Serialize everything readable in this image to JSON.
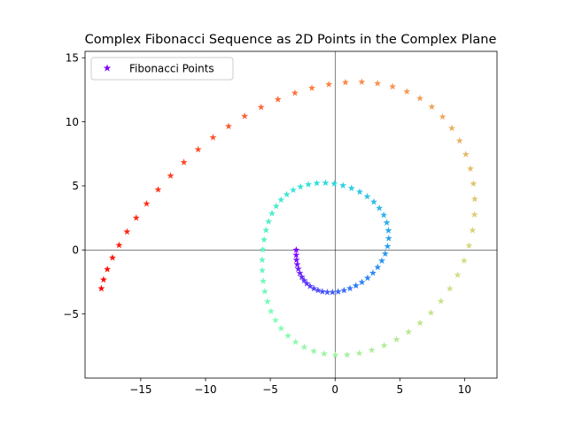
{
  "chart_data": {
    "type": "scatter",
    "title": "Complex Fibonacci Sequence as 2D Points in the Complex Plane",
    "xlabel": "",
    "ylabel": "",
    "xlim": [
      -19.3,
      12.5
    ],
    "ylim": [
      -10.0,
      15.5
    ],
    "x_ticks": [
      -15,
      -10,
      -5,
      0,
      5,
      10
    ],
    "y_ticks": [
      -5,
      0,
      5,
      10,
      15
    ],
    "x_tick_labels": [
      "−15",
      "−10",
      "−5",
      "0",
      "5",
      "10"
    ],
    "y_tick_labels": [
      "−5",
      "0",
      "5",
      "10",
      "15"
    ],
    "grid": false,
    "legend": {
      "position": "top-left",
      "entries": [
        "Fibonacci Points"
      ]
    },
    "marker": "star",
    "colormap": "rainbow",
    "colormap_stops": [
      "#8000ff",
      "#2c7ef7",
      "#2adddd",
      "#80ffb4",
      "#d4dd80",
      "#ff7e41",
      "#ff0000"
    ],
    "reference_lines": [
      "x=0",
      "y=0"
    ],
    "series": [
      {
        "name": "Fibonacci Points",
        "x": [
          -3.0,
          -3.0,
          -2.98,
          -2.92,
          -2.84,
          -2.72,
          -2.57,
          -2.39,
          -2.18,
          -1.93,
          -1.64,
          -1.32,
          -0.98,
          -0.6,
          -0.2,
          0.24,
          0.69,
          1.15,
          1.61,
          2.07,
          2.51,
          2.92,
          3.29,
          3.61,
          3.87,
          4.05,
          4.14,
          4.12,
          3.99,
          3.76,
          3.42,
          2.99,
          2.48,
          1.9,
          1.27,
          0.61,
          -0.06,
          -0.74,
          -1.41,
          -2.06,
          -2.67,
          -3.23,
          -3.73,
          -4.17,
          -4.55,
          -4.87,
          -5.13,
          -5.33,
          -5.48,
          -5.58,
          -5.63,
          -5.62,
          -5.55,
          -5.42,
          -5.22,
          -4.95,
          -4.6,
          -4.16,
          -3.64,
          -3.05,
          -2.38,
          -1.64,
          -0.84,
          0.02,
          0.93,
          1.87,
          2.83,
          3.79,
          4.74,
          5.67,
          6.56,
          7.4,
          8.17,
          8.86,
          9.46,
          9.96,
          10.34,
          10.61,
          10.76,
          10.78,
          10.68,
          10.45,
          10.09,
          9.61,
          9.01,
          8.3,
          7.47,
          6.55,
          5.54,
          4.44,
          3.28,
          2.06,
          0.8,
          -0.48,
          -1.79,
          -3.1,
          -4.41,
          -5.71,
          -6.98,
          -8.22,
          -9.42,
          -10.57,
          -11.67,
          -12.7,
          -13.66,
          -14.55,
          -15.35,
          -16.06,
          -16.67,
          -17.18,
          -17.58,
          -17.87,
          -18.04
        ],
        "y": [
          0.0,
          -0.4,
          -0.78,
          -1.14,
          -1.48,
          -1.81,
          -2.11,
          -2.38,
          -2.62,
          -2.83,
          -3.01,
          -3.15,
          -3.25,
          -3.3,
          -3.3,
          -3.26,
          -3.16,
          -3.0,
          -2.79,
          -2.52,
          -2.19,
          -1.8,
          -1.35,
          -0.85,
          -0.3,
          0.28,
          0.9,
          1.52,
          2.13,
          2.72,
          3.26,
          3.75,
          4.17,
          4.53,
          4.82,
          5.03,
          5.17,
          5.23,
          5.21,
          5.11,
          4.93,
          4.67,
          4.33,
          3.91,
          3.41,
          2.85,
          2.22,
          1.54,
          0.8,
          0.02,
          -0.78,
          -1.6,
          -2.43,
          -3.24,
          -4.03,
          -4.79,
          -5.49,
          -6.13,
          -6.7,
          -7.19,
          -7.59,
          -7.9,
          -8.1,
          -8.2,
          -8.19,
          -8.06,
          -7.82,
          -7.46,
          -6.99,
          -6.4,
          -5.7,
          -4.9,
          -4.0,
          -3.02,
          -1.96,
          -0.84,
          0.33,
          1.53,
          2.75,
          3.97,
          5.17,
          6.34,
          7.46,
          8.52,
          9.5,
          10.39,
          11.17,
          11.83,
          12.36,
          12.75,
          13.0,
          13.11,
          13.08,
          12.92,
          12.64,
          12.25,
          11.75,
          11.14,
          10.44,
          9.65,
          8.78,
          7.84,
          6.84,
          5.79,
          4.71,
          3.61,
          2.5,
          1.42,
          0.37,
          -0.61,
          -1.51,
          -2.32,
          -3.01
        ]
      }
    ]
  }
}
